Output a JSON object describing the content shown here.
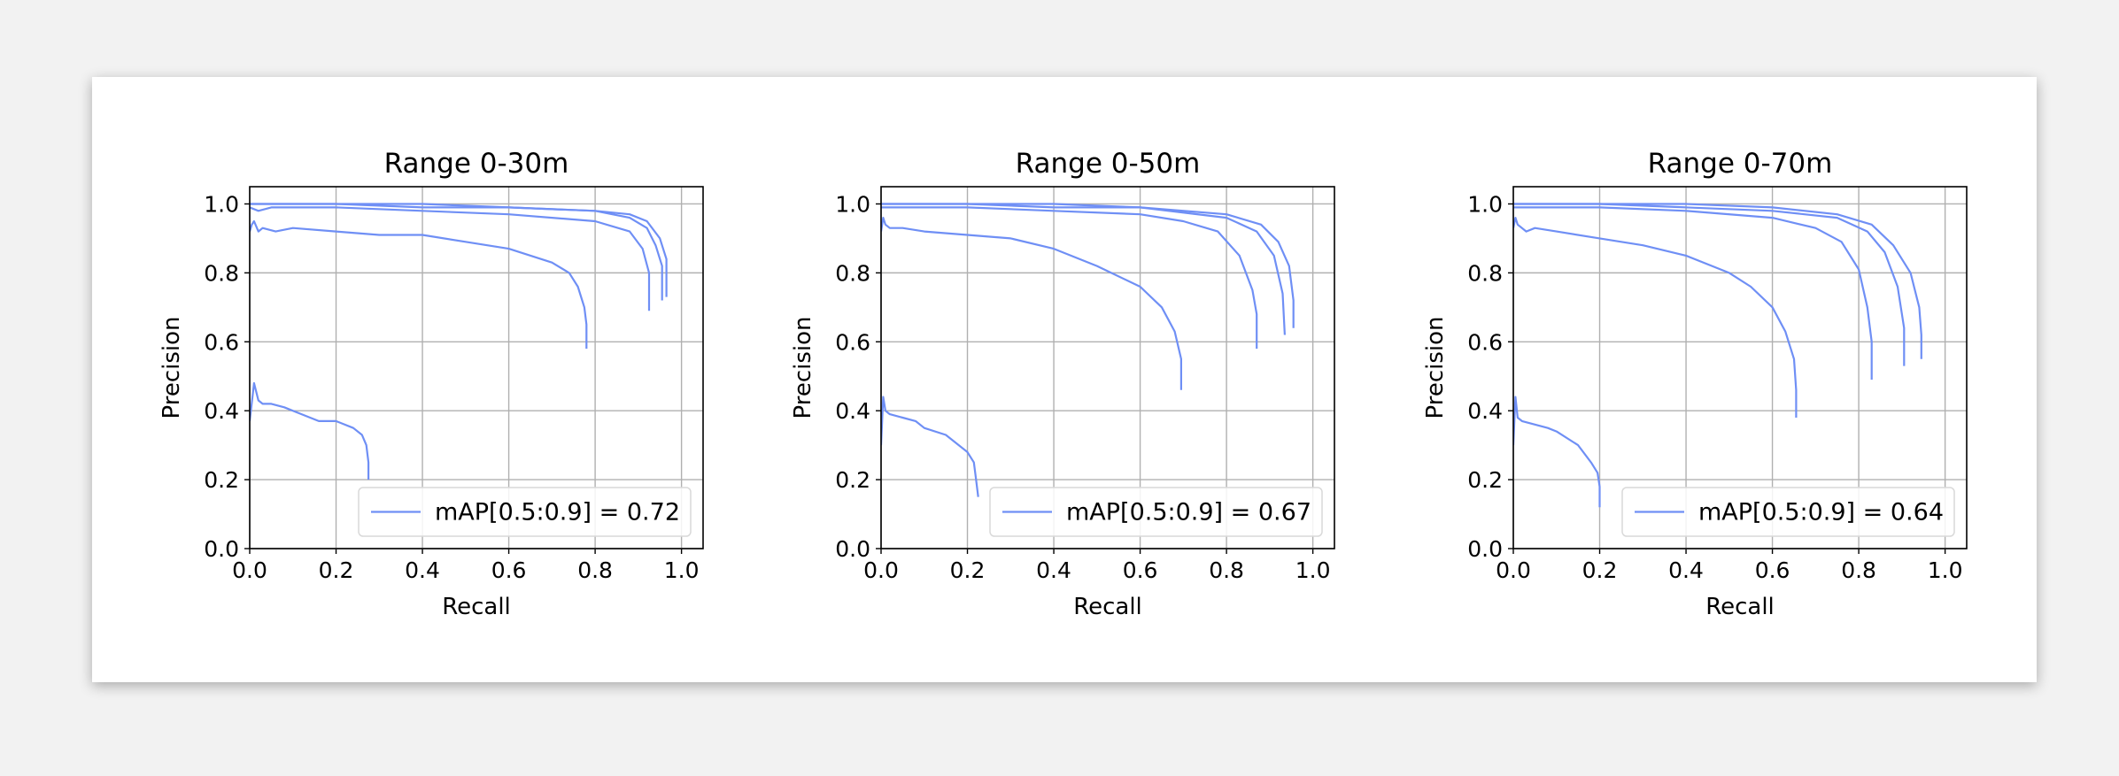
{
  "colors": {
    "series": "#6f8ff5",
    "grid": "#b0b0b0",
    "axis": "#000000",
    "legend_border": "#d9d9d9"
  },
  "chart_data": [
    {
      "type": "line",
      "title": "Range 0-30m",
      "xlabel": "Recall",
      "ylabel": "Precision",
      "xlim": [
        0.0,
        1.05
      ],
      "ylim": [
        0.0,
        1.05
      ],
      "xticks": [
        "0.0",
        "0.2",
        "0.4",
        "0.6",
        "0.8",
        "1.0"
      ],
      "yticks": [
        "0.0",
        "0.2",
        "0.4",
        "0.6",
        "0.8",
        "1.0"
      ],
      "grid": true,
      "legend": {
        "label": "mAP[0.5:0.9] = 0.72",
        "position": "lower right"
      },
      "series": [
        {
          "x": [
            0.0,
            0.01,
            0.02,
            0.03,
            0.05,
            0.08,
            0.12,
            0.16,
            0.2,
            0.24,
            0.26,
            0.27,
            0.275,
            0.275
          ],
          "y": [
            0.37,
            0.48,
            0.43,
            0.42,
            0.42,
            0.41,
            0.39,
            0.37,
            0.37,
            0.35,
            0.33,
            0.3,
            0.25,
            0.2
          ]
        },
        {
          "x": [
            0.0,
            0.005,
            0.01,
            0.02,
            0.03,
            0.06,
            0.1,
            0.2,
            0.3,
            0.4,
            0.5,
            0.6,
            0.7,
            0.74,
            0.76,
            0.775,
            0.78,
            0.78
          ],
          "y": [
            0.92,
            0.94,
            0.95,
            0.92,
            0.93,
            0.92,
            0.93,
            0.92,
            0.91,
            0.91,
            0.89,
            0.87,
            0.83,
            0.8,
            0.76,
            0.7,
            0.65,
            0.58
          ]
        },
        {
          "x": [
            0.0,
            0.02,
            0.05,
            0.1,
            0.2,
            0.4,
            0.6,
            0.8,
            0.88,
            0.91,
            0.925,
            0.925
          ],
          "y": [
            0.99,
            0.98,
            0.99,
            0.99,
            0.99,
            0.98,
            0.97,
            0.95,
            0.92,
            0.87,
            0.8,
            0.69
          ]
        },
        {
          "x": [
            0.0,
            0.05,
            0.1,
            0.2,
            0.4,
            0.6,
            0.8,
            0.88,
            0.92,
            0.94,
            0.955,
            0.955
          ],
          "y": [
            1.0,
            1.0,
            1.0,
            1.0,
            0.99,
            0.99,
            0.98,
            0.96,
            0.93,
            0.88,
            0.82,
            0.72
          ]
        },
        {
          "x": [
            0.0,
            0.05,
            0.1,
            0.2,
            0.4,
            0.6,
            0.8,
            0.88,
            0.92,
            0.95,
            0.965,
            0.965
          ],
          "y": [
            1.0,
            1.0,
            1.0,
            1.0,
            1.0,
            0.99,
            0.98,
            0.97,
            0.95,
            0.9,
            0.84,
            0.73
          ]
        }
      ]
    },
    {
      "type": "line",
      "title": "Range 0-50m",
      "xlabel": "Recall",
      "ylabel": "Precision",
      "xlim": [
        0.0,
        1.05
      ],
      "ylim": [
        0.0,
        1.05
      ],
      "xticks": [
        "0.0",
        "0.2",
        "0.4",
        "0.6",
        "0.8",
        "1.0"
      ],
      "yticks": [
        "0.0",
        "0.2",
        "0.4",
        "0.6",
        "0.8",
        "1.0"
      ],
      "grid": true,
      "legend": {
        "label": "mAP[0.5:0.9] = 0.67",
        "position": "lower right"
      },
      "series": [
        {
          "x": [
            0.0,
            0.005,
            0.01,
            0.02,
            0.05,
            0.08,
            0.1,
            0.15,
            0.2,
            0.215,
            0.22,
            0.225
          ],
          "y": [
            0.3,
            0.44,
            0.4,
            0.39,
            0.38,
            0.37,
            0.35,
            0.33,
            0.28,
            0.25,
            0.2,
            0.15
          ]
        },
        {
          "x": [
            0.0,
            0.005,
            0.01,
            0.02,
            0.05,
            0.1,
            0.2,
            0.3,
            0.4,
            0.5,
            0.6,
            0.65,
            0.68,
            0.695,
            0.695
          ],
          "y": [
            0.92,
            0.96,
            0.94,
            0.93,
            0.93,
            0.92,
            0.91,
            0.9,
            0.87,
            0.82,
            0.76,
            0.7,
            0.63,
            0.55,
            0.46
          ]
        },
        {
          "x": [
            0.0,
            0.05,
            0.1,
            0.2,
            0.4,
            0.6,
            0.7,
            0.78,
            0.83,
            0.86,
            0.87,
            0.87
          ],
          "y": [
            0.99,
            0.99,
            0.99,
            0.99,
            0.98,
            0.97,
            0.95,
            0.92,
            0.85,
            0.75,
            0.68,
            0.58
          ]
        },
        {
          "x": [
            0.0,
            0.05,
            0.1,
            0.2,
            0.4,
            0.6,
            0.8,
            0.87,
            0.91,
            0.93,
            0.935
          ],
          "y": [
            1.0,
            1.0,
            1.0,
            1.0,
            0.99,
            0.99,
            0.96,
            0.92,
            0.85,
            0.74,
            0.62
          ]
        },
        {
          "x": [
            0.0,
            0.05,
            0.1,
            0.2,
            0.4,
            0.6,
            0.8,
            0.88,
            0.92,
            0.945,
            0.955,
            0.955
          ],
          "y": [
            1.0,
            1.0,
            1.0,
            1.0,
            1.0,
            0.99,
            0.97,
            0.94,
            0.89,
            0.82,
            0.72,
            0.64
          ]
        }
      ]
    },
    {
      "type": "line",
      "title": "Range 0-70m",
      "xlabel": "Recall",
      "ylabel": "Precision",
      "xlim": [
        0.0,
        1.05
      ],
      "ylim": [
        0.0,
        1.05
      ],
      "xticks": [
        "0.0",
        "0.2",
        "0.4",
        "0.6",
        "0.8",
        "1.0"
      ],
      "yticks": [
        "0.0",
        "0.2",
        "0.4",
        "0.6",
        "0.8",
        "1.0"
      ],
      "grid": true,
      "legend": {
        "label": "mAP[0.5:0.9] = 0.64",
        "position": "lower right"
      },
      "series": [
        {
          "x": [
            0.0,
            0.005,
            0.01,
            0.02,
            0.05,
            0.08,
            0.1,
            0.15,
            0.18,
            0.195,
            0.2,
            0.2
          ],
          "y": [
            0.3,
            0.44,
            0.38,
            0.37,
            0.36,
            0.35,
            0.34,
            0.3,
            0.25,
            0.22,
            0.18,
            0.12
          ]
        },
        {
          "x": [
            0.0,
            0.005,
            0.01,
            0.03,
            0.05,
            0.1,
            0.2,
            0.3,
            0.4,
            0.5,
            0.55,
            0.6,
            0.63,
            0.65,
            0.655,
            0.655
          ],
          "y": [
            0.93,
            0.96,
            0.94,
            0.92,
            0.93,
            0.92,
            0.9,
            0.88,
            0.85,
            0.8,
            0.76,
            0.7,
            0.63,
            0.55,
            0.46,
            0.38
          ]
        },
        {
          "x": [
            0.0,
            0.05,
            0.1,
            0.2,
            0.4,
            0.6,
            0.7,
            0.76,
            0.8,
            0.82,
            0.83,
            0.83
          ],
          "y": [
            0.99,
            0.99,
            0.99,
            0.99,
            0.98,
            0.96,
            0.93,
            0.89,
            0.81,
            0.7,
            0.6,
            0.49
          ]
        },
        {
          "x": [
            0.0,
            0.05,
            0.1,
            0.2,
            0.4,
            0.6,
            0.75,
            0.82,
            0.86,
            0.89,
            0.905,
            0.905
          ],
          "y": [
            1.0,
            1.0,
            1.0,
            1.0,
            0.99,
            0.98,
            0.96,
            0.92,
            0.86,
            0.76,
            0.64,
            0.53
          ]
        },
        {
          "x": [
            0.0,
            0.05,
            0.1,
            0.2,
            0.4,
            0.6,
            0.75,
            0.83,
            0.88,
            0.92,
            0.94,
            0.945,
            0.945
          ],
          "y": [
            1.0,
            1.0,
            1.0,
            1.0,
            1.0,
            0.99,
            0.97,
            0.94,
            0.88,
            0.8,
            0.7,
            0.62,
            0.55
          ]
        }
      ]
    }
  ]
}
